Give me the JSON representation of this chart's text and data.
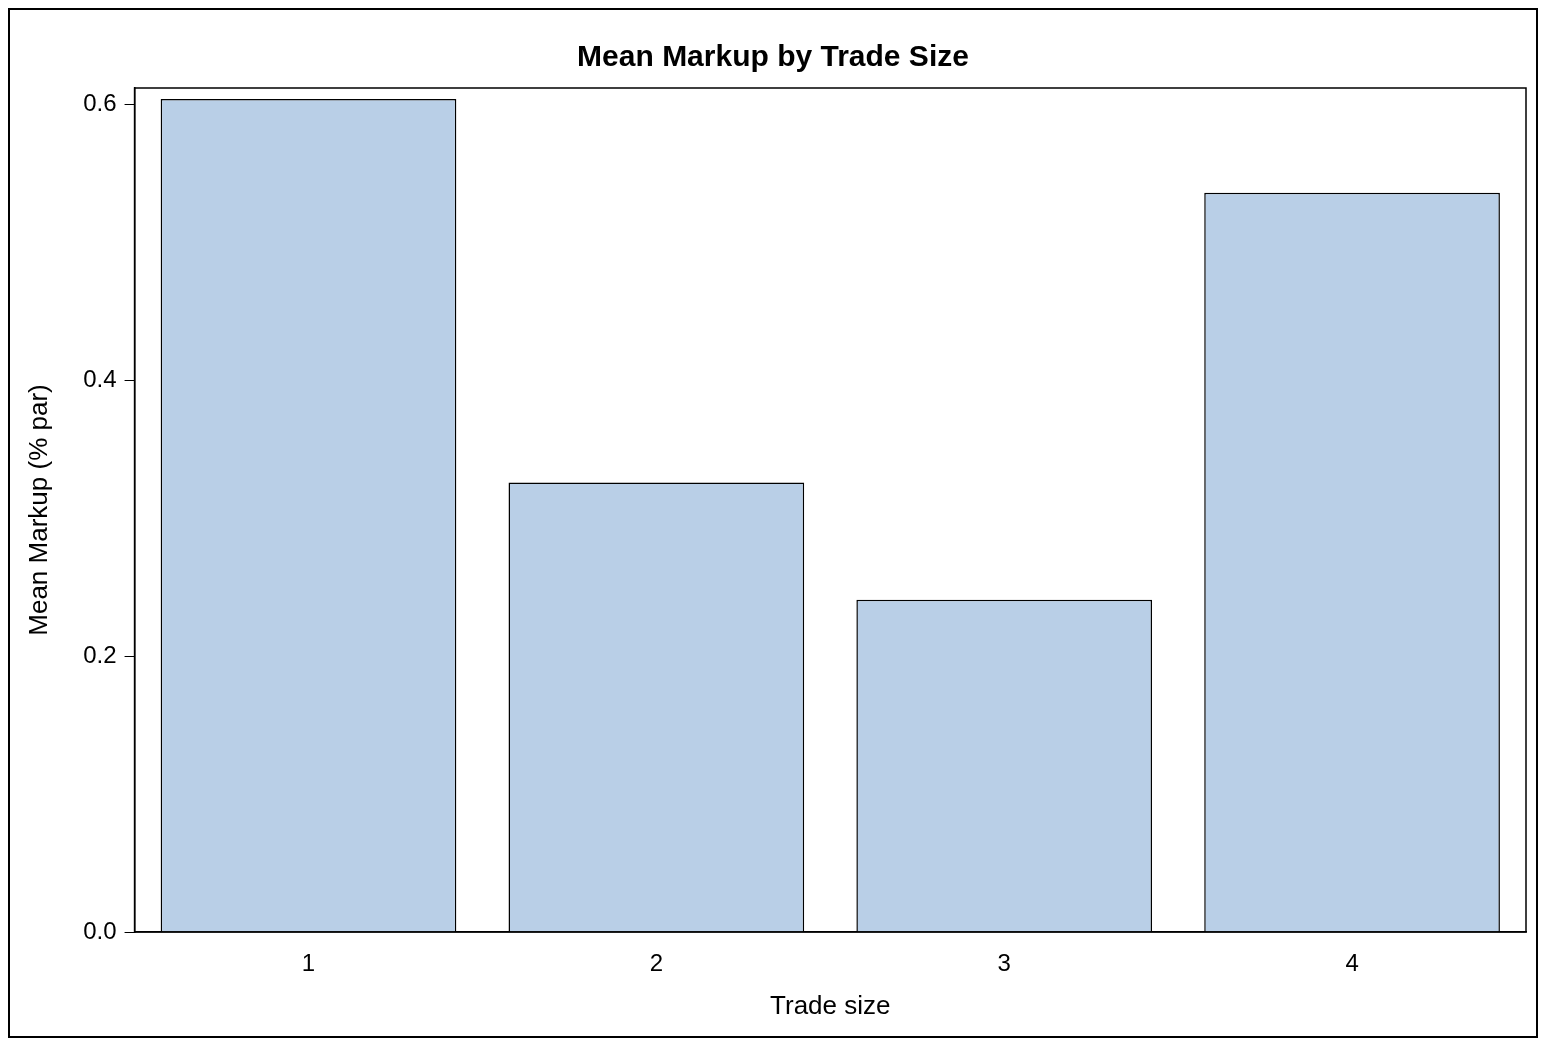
{
  "chart_data": {
    "type": "bar",
    "title": "Mean Markup by Trade Size",
    "xlabel": "Trade size",
    "ylabel": "Mean Markup (% par)",
    "categories": [
      "1",
      "2",
      "3",
      "4"
    ],
    "values": [
      0.604,
      0.326,
      0.241,
      0.536
    ],
    "color": "#b9cfe7",
    "ylim": [
      0,
      0.612
    ],
    "yticks": [
      {
        "value": 0,
        "label": "0.0"
      },
      {
        "value": 0.2,
        "label": "0.2"
      },
      {
        "value": 0.4,
        "label": "0.4"
      },
      {
        "value": 0.6,
        "label": "0.6"
      }
    ],
    "grid": false,
    "legend": false
  }
}
